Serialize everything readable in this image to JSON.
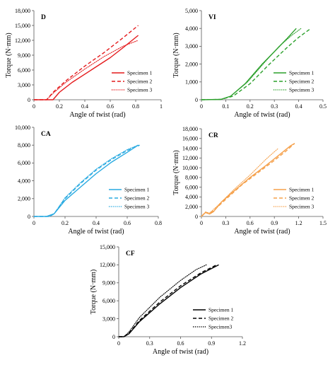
{
  "chart_data": [
    {
      "type": "line",
      "title": "D",
      "xlabel": "Angle of twist (rad)",
      "ylabel": "Torque (N·mm)",
      "xlim": [
        0,
        1
      ],
      "ylim": [
        0,
        18000
      ],
      "x_ticks": [
        "0",
        "0.2",
        "0.4",
        "0.6",
        "0.8",
        "1"
      ],
      "y_ticks": [
        "0",
        "3,000",
        "6,000",
        "9,000",
        "12,000",
        "15,000",
        "18,000"
      ],
      "legend_position": "bottom-right",
      "color": "#e41a1c",
      "series": [
        {
          "name": "Specimen 1",
          "dash": "solid",
          "points": [
            [
              0,
              0
            ],
            [
              0.15,
              0
            ],
            [
              0.2,
              1500
            ],
            [
              0.3,
              3500
            ],
            [
              0.45,
              6000
            ],
            [
              0.6,
              8500
            ],
            [
              0.7,
              10500
            ],
            [
              0.82,
              13000
            ]
          ]
        },
        {
          "name": "Specimen 2",
          "dash": "dashed",
          "points": [
            [
              0,
              0
            ],
            [
              0.1,
              0
            ],
            [
              0.15,
              1500
            ],
            [
              0.25,
              3800
            ],
            [
              0.4,
              6800
            ],
            [
              0.55,
              9500
            ],
            [
              0.7,
              12500
            ],
            [
              0.82,
              15000
            ]
          ]
        },
        {
          "name": "Specimen 3",
          "dash": "dotted",
          "points": [
            [
              0,
              0
            ],
            [
              0.1,
              0
            ],
            [
              0.15,
              1300
            ],
            [
              0.25,
              3500
            ],
            [
              0.4,
              6200
            ],
            [
              0.55,
              8700
            ],
            [
              0.7,
              10800
            ],
            [
              0.82,
              12000
            ]
          ]
        }
      ]
    },
    {
      "type": "line",
      "title": "VI",
      "xlabel": "Angle of twist (rad)",
      "ylabel": "Torque (N·mm)",
      "xlim": [
        0,
        0.5
      ],
      "ylim": [
        0,
        5000
      ],
      "x_ticks": [
        "0",
        "0.1",
        "0.2",
        "0.3",
        "0.4",
        "0.5"
      ],
      "y_ticks": [
        "0",
        "1,000",
        "2,000",
        "3,000",
        "4,000",
        "5,000"
      ],
      "legend_position": "bottom-right",
      "color": "#2ca02c",
      "series": [
        {
          "name": "Specimen 1",
          "dash": "solid",
          "points": [
            [
              0,
              0
            ],
            [
              0.08,
              20
            ],
            [
              0.12,
              200
            ],
            [
              0.18,
              900
            ],
            [
              0.25,
              2000
            ],
            [
              0.3,
              2700
            ],
            [
              0.35,
              3400
            ],
            [
              0.39,
              4000
            ]
          ]
        },
        {
          "name": "Specimen 2",
          "dash": "dashed",
          "points": [
            [
              0,
              0
            ],
            [
              0.08,
              20
            ],
            [
              0.13,
              200
            ],
            [
              0.2,
              900
            ],
            [
              0.28,
              2000
            ],
            [
              0.35,
              2900
            ],
            [
              0.4,
              3500
            ],
            [
              0.45,
              4000
            ]
          ]
        },
        {
          "name": "Specimen 3",
          "dash": "dotted",
          "points": [
            [
              0,
              0
            ],
            [
              0.08,
              20
            ],
            [
              0.12,
              200
            ],
            [
              0.19,
              1000
            ],
            [
              0.26,
              2100
            ],
            [
              0.32,
              3000
            ],
            [
              0.37,
              3600
            ],
            [
              0.41,
              4000
            ]
          ]
        }
      ]
    },
    {
      "type": "line",
      "title": "CA",
      "xlabel": "Angle of twist (rad)",
      "ylabel": "",
      "xlim": [
        0,
        0.8
      ],
      "ylim": [
        0,
        10000
      ],
      "x_ticks": [
        "0",
        "0.2",
        "0.4",
        "0.6",
        "0.8"
      ],
      "y_ticks": [
        "0",
        "2,000",
        "4,000",
        "6,000",
        "8,000",
        "10,000"
      ],
      "legend_position": "bottom-right",
      "color": "#29aae1",
      "series": [
        {
          "name": "Specimen 1",
          "dash": "solid",
          "points": [
            [
              0,
              0
            ],
            [
              0.08,
              0
            ],
            [
              0.13,
              300
            ],
            [
              0.2,
              1800
            ],
            [
              0.3,
              3300
            ],
            [
              0.4,
              4800
            ],
            [
              0.5,
              6100
            ],
            [
              0.6,
              7200
            ],
            [
              0.67,
              8000
            ]
          ]
        },
        {
          "name": "Specimen 2",
          "dash": "dashed",
          "points": [
            [
              0,
              0
            ],
            [
              0.1,
              0
            ],
            [
              0.13,
              300
            ],
            [
              0.2,
              2000
            ],
            [
              0.3,
              3700
            ],
            [
              0.4,
              5200
            ],
            [
              0.5,
              6400
            ],
            [
              0.6,
              7400
            ],
            [
              0.68,
              8000
            ]
          ]
        },
        {
          "name": "Specimen 3",
          "dash": "dotted",
          "points": [
            [
              0,
              0
            ],
            [
              0.1,
              0
            ],
            [
              0.13,
              300
            ],
            [
              0.2,
              2100
            ],
            [
              0.3,
              3800
            ],
            [
              0.4,
              5300
            ],
            [
              0.5,
              6500
            ],
            [
              0.6,
              7500
            ],
            [
              0.67,
              8000
            ]
          ]
        }
      ]
    },
    {
      "type": "line",
      "title": "CR",
      "xlabel": "Angle of twist (rad)",
      "ylabel": "Torque (N·mm)",
      "xlim": [
        0,
        1.5
      ],
      "ylim": [
        0,
        18000
      ],
      "x_ticks": [
        "0",
        "0.3",
        "0.6",
        "0.9",
        "1.2",
        "1.5"
      ],
      "y_ticks": [
        "0",
        "2,000",
        "4,000",
        "6,000",
        "8,000",
        "10,000",
        "12,000",
        "14,000",
        "16,000",
        "18,000"
      ],
      "legend_position": "bottom-right",
      "color": "#f5a04a",
      "series": [
        {
          "name": "Specimen 1",
          "dash": "solid",
          "points": [
            [
              0,
              0
            ],
            [
              0.05,
              800
            ],
            [
              0.1,
              500
            ],
            [
              0.15,
              1000
            ],
            [
              0.25,
              3000
            ],
            [
              0.4,
              5200
            ],
            [
              0.6,
              8000
            ],
            [
              0.8,
              10500
            ],
            [
              0.95,
              12500
            ],
            [
              1.1,
              14500
            ],
            [
              1.15,
              15000
            ]
          ]
        },
        {
          "name": "Specimen 2",
          "dash": "dashed",
          "points": [
            [
              0,
              0
            ],
            [
              0.05,
              900
            ],
            [
              0.1,
              600
            ],
            [
              0.15,
              1200
            ],
            [
              0.3,
              3500
            ],
            [
              0.5,
              6500
            ],
            [
              0.7,
              9000
            ],
            [
              0.9,
              11500
            ],
            [
              1.05,
              13500
            ],
            [
              1.15,
              15000
            ]
          ]
        },
        {
          "name": "Specimen 3",
          "dash": "dotted",
          "points": [
            [
              0,
              0
            ],
            [
              0.05,
              900
            ],
            [
              0.1,
              700
            ],
            [
              0.2,
              2200
            ],
            [
              0.4,
              5500
            ],
            [
              0.6,
              8500
            ],
            [
              0.8,
              11800
            ],
            [
              0.95,
              14000
            ]
          ]
        }
      ]
    },
    {
      "type": "line",
      "title": "CF",
      "xlabel": "Angle of twist (rad)",
      "ylabel": "Torque (N·mm)",
      "xlim": [
        0,
        1.2
      ],
      "ylim": [
        0,
        15000
      ],
      "x_ticks": [
        "0",
        "0.3",
        "0.6",
        "0.9",
        "1.2"
      ],
      "y_ticks": [
        "0",
        "3,000",
        "6,000",
        "9,000",
        "12,000",
        "15,000"
      ],
      "legend_position": "bottom-right",
      "color": "#000000",
      "series": [
        {
          "name": "Specimen 1",
          "dash": "solid",
          "points": [
            [
              0,
              0
            ],
            [
              0.05,
              0
            ],
            [
              0.1,
              500
            ],
            [
              0.2,
              2500
            ],
            [
              0.4,
              5500
            ],
            [
              0.6,
              8200
            ],
            [
              0.8,
              10500
            ],
            [
              0.97,
              12000
            ]
          ]
        },
        {
          "name": "Specimen 2",
          "dash": "dashed",
          "points": [
            [
              0,
              0
            ],
            [
              0.05,
              0
            ],
            [
              0.1,
              600
            ],
            [
              0.2,
              2700
            ],
            [
              0.4,
              5800
            ],
            [
              0.6,
              8500
            ],
            [
              0.8,
              10700
            ],
            [
              0.95,
              12000
            ]
          ]
        },
        {
          "name": "Specimen3",
          "dash": "dotted",
          "points": [
            [
              0,
              0
            ],
            [
              0.05,
              0
            ],
            [
              0.1,
              800
            ],
            [
              0.2,
              3200
            ],
            [
              0.4,
              6600
            ],
            [
              0.6,
              9400
            ],
            [
              0.75,
              11200
            ],
            [
              0.85,
              12000
            ]
          ]
        }
      ]
    }
  ]
}
